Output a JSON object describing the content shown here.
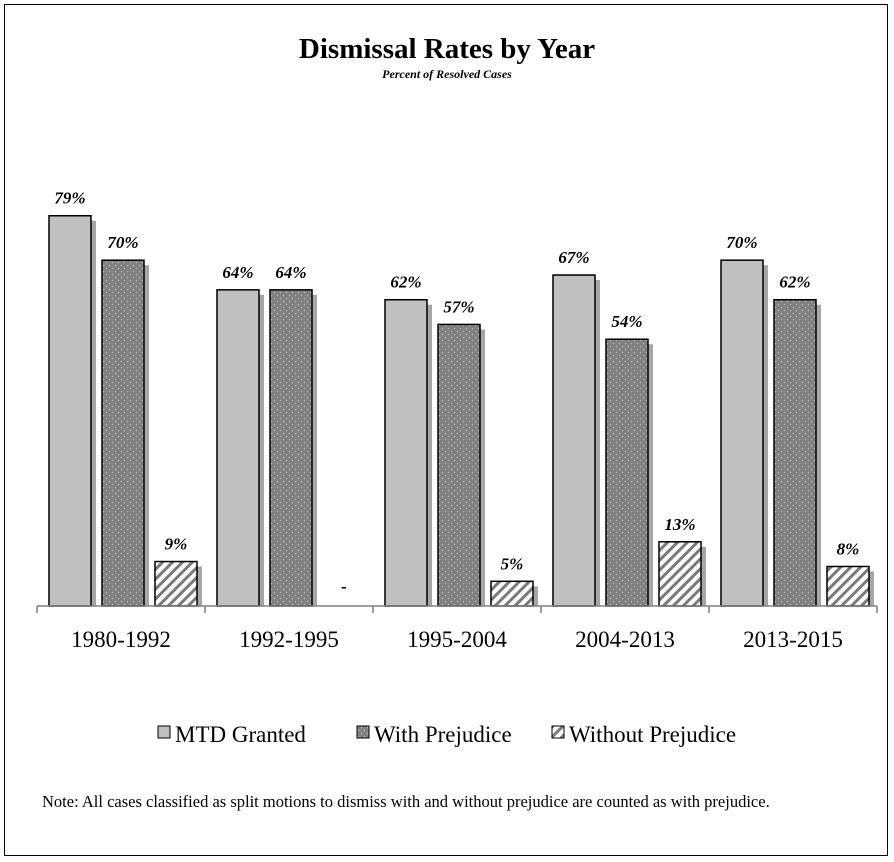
{
  "chart_data": {
    "type": "bar",
    "title": "Dismissal Rates by Year",
    "subtitle": "Percent of Resolved Cases",
    "categories": [
      "1980-1992",
      "1992-1995",
      "1995-2004",
      "2004-2013",
      "2013-2015"
    ],
    "series": [
      {
        "name": "MTD Granted",
        "values": [
          79,
          64,
          62,
          67,
          70
        ],
        "labels": [
          "79%",
          "64%",
          "62%",
          "67%",
          "70%"
        ]
      },
      {
        "name": "With Prejudice",
        "values": [
          70,
          64,
          57,
          54,
          62
        ],
        "labels": [
          "70%",
          "64%",
          "57%",
          "54%",
          "62%"
        ]
      },
      {
        "name": "Without Prejudice",
        "values": [
          9,
          0,
          5,
          13,
          8
        ],
        "labels": [
          "9%",
          "-",
          "5%",
          "13%",
          "8%"
        ]
      }
    ],
    "ylim": [
      0,
      100
    ],
    "grid": false,
    "legend_position": "bottom",
    "colors": {
      "mtd": "#c0c0c0",
      "with": "#808080",
      "without_fill": "#ffffff",
      "shadow": "#a6a6a6",
      "axis": "#808080"
    }
  },
  "note": "Note:  All cases classified as split motions to dismiss with and without prejudice are counted as with prejudice."
}
